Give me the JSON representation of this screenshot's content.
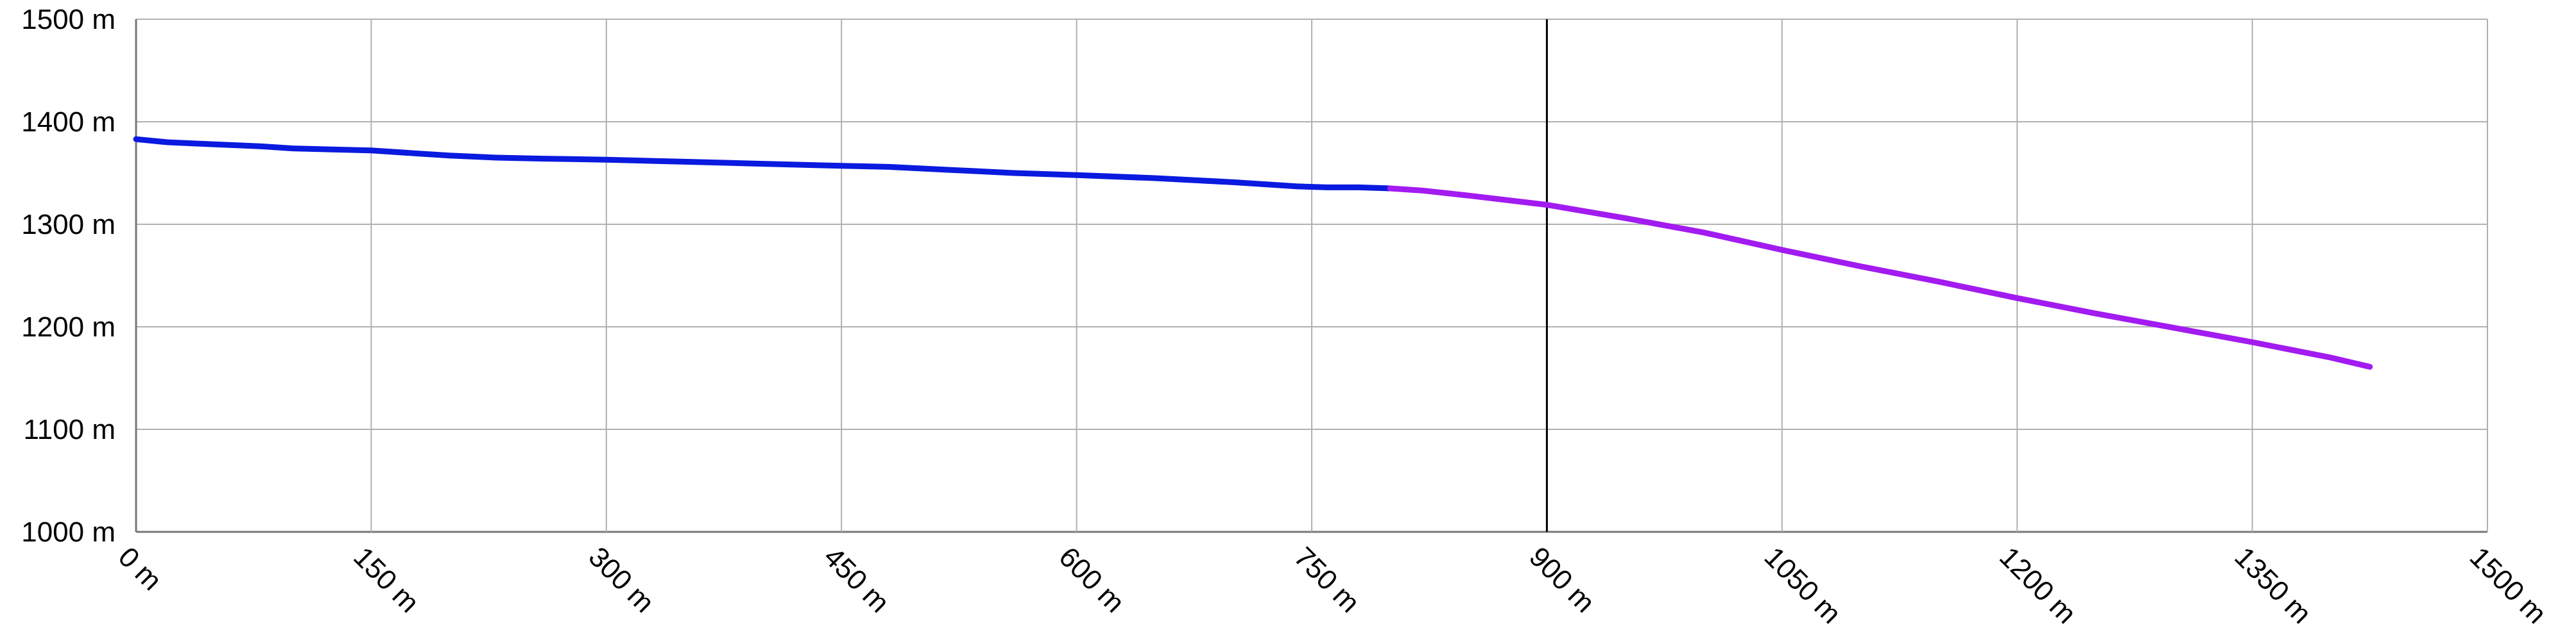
{
  "chart_data": {
    "type": "line",
    "title": "",
    "xlabel": "",
    "ylabel": "",
    "xlim": [
      0,
      1500
    ],
    "ylim": [
      1000,
      1500
    ],
    "grid": true,
    "x_ticks": [
      0,
      150,
      300,
      450,
      600,
      750,
      900,
      1050,
      1200,
      1350,
      1500
    ],
    "y_ticks": [
      1000,
      1100,
      1200,
      1300,
      1400,
      1500
    ],
    "x_tick_labels": [
      "0 m",
      "150 m",
      "300 m",
      "450 m",
      "600 m",
      "750 m",
      "900 m",
      "1050 m",
      "1200 m",
      "1350 m",
      "1500 m"
    ],
    "y_tick_labels": [
      "1000 m",
      "1100 m",
      "1200 m",
      "1300 m",
      "1400 m",
      "1500 m"
    ],
    "highlight_x": 900,
    "series": [
      {
        "color": "#0a1adf",
        "points": [
          [
            0,
            1383
          ],
          [
            20,
            1380
          ],
          [
            50,
            1378
          ],
          [
            80,
            1376
          ],
          [
            100,
            1374
          ],
          [
            150,
            1372
          ],
          [
            180,
            1369
          ],
          [
            200,
            1367
          ],
          [
            230,
            1365
          ],
          [
            260,
            1364
          ],
          [
            300,
            1363
          ],
          [
            350,
            1361
          ],
          [
            400,
            1359
          ],
          [
            450,
            1357
          ],
          [
            480,
            1356
          ],
          [
            520,
            1353
          ],
          [
            560,
            1350
          ],
          [
            600,
            1348
          ],
          [
            650,
            1345
          ],
          [
            700,
            1341
          ],
          [
            740,
            1337
          ],
          [
            760,
            1336
          ],
          [
            780,
            1336
          ],
          [
            800,
            1335
          ]
        ]
      },
      {
        "color": "#a21bf0",
        "points": [
          [
            800,
            1335
          ],
          [
            820,
            1333
          ],
          [
            850,
            1328
          ],
          [
            900,
            1319
          ],
          [
            950,
            1306
          ],
          [
            1000,
            1292
          ],
          [
            1050,
            1275
          ],
          [
            1100,
            1259
          ],
          [
            1150,
            1244
          ],
          [
            1200,
            1228
          ],
          [
            1250,
            1213
          ],
          [
            1300,
            1199
          ],
          [
            1350,
            1185
          ],
          [
            1400,
            1170
          ],
          [
            1425,
            1161
          ]
        ]
      }
    ]
  }
}
